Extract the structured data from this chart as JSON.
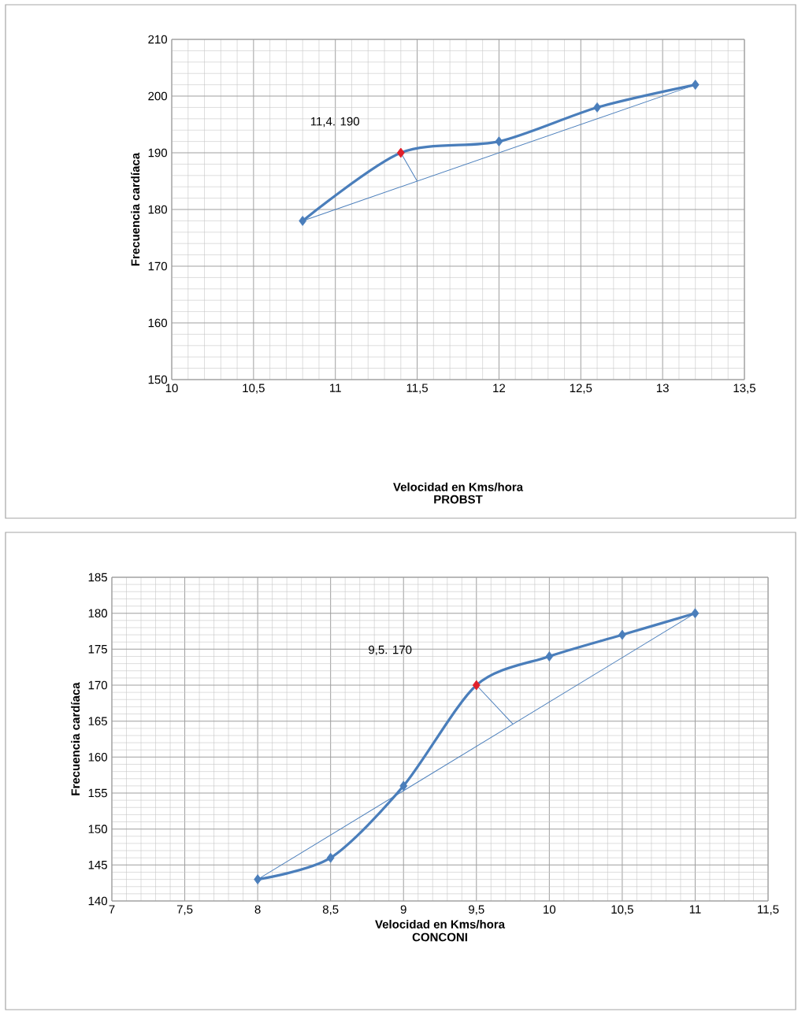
{
  "chart_data": [
    {
      "type": "line",
      "title": "PROBST",
      "xlabel": "Velocidad en Kms/hora",
      "ylabel": "Frecuencia cardíaca",
      "xlim": [
        10,
        13.5
      ],
      "xticks": [
        10,
        {
          "value": 10.5,
          "label": "10,5"
        },
        11,
        {
          "value": 11.5,
          "label": "11,5"
        },
        12,
        {
          "value": 12.5,
          "label": "12,5"
        },
        13,
        {
          "value": 13.5,
          "label": "13,5"
        }
      ],
      "ylim": [
        150,
        210
      ],
      "yticks": [
        150,
        160,
        170,
        180,
        190,
        200,
        210
      ],
      "grid": true,
      "series": [
        {
          "marker": "diamond",
          "color": "#4a7ebb",
          "colors": [
            "#4a7ebb",
            "#e0202a",
            "#4a7ebb",
            "#4a7ebb",
            "#4a7ebb"
          ],
          "x": [
            10.8,
            11.4,
            12,
            12.6,
            13.2
          ],
          "values": [
            178,
            190,
            192,
            198,
            202
          ]
        },
        {
          "marker": "none",
          "color": "#4a7ebb",
          "x": [
            10.8,
            13.2
          ],
          "values": [
            178,
            202
          ]
        },
        {
          "marker": "none",
          "color": "#4a7ebb",
          "x": [
            11.4,
            11.5
          ],
          "values": [
            190,
            185
          ]
        }
      ],
      "annotations": [
        "11,4. 190"
      ]
    },
    {
      "type": "line",
      "title": "CONCONI",
      "xlabel": "Velocidad en Kms/hora",
      "ylabel": "Frecuencia cardíaca",
      "xlim": [
        7,
        11.5
      ],
      "xticks": [
        7,
        {
          "value": 7.5,
          "label": "7,5"
        },
        8,
        {
          "value": 8.5,
          "label": "8,5"
        },
        9,
        {
          "value": 9.5,
          "label": "9,5"
        },
        10,
        {
          "value": 10.5,
          "label": "10,5"
        },
        11,
        {
          "value": 11.5,
          "label": "11,5"
        }
      ],
      "ylim": [
        140,
        185
      ],
      "yticks": [
        140,
        145,
        150,
        155,
        160,
        165,
        170,
        175,
        180,
        185
      ],
      "grid": true,
      "series": [
        {
          "marker": "diamond",
          "color": "#4a7ebb",
          "colors": [
            "#4a7ebb",
            "#4a7ebb",
            "#4a7ebb",
            "#e0202a",
            "#4a7ebb",
            "#4a7ebb",
            "#4a7ebb"
          ],
          "x": [
            8,
            8.5,
            9,
            9.5,
            10,
            10.5,
            11
          ],
          "values": [
            143,
            146,
            156,
            170,
            174,
            177,
            180
          ]
        },
        {
          "marker": "none",
          "color": "#4a7ebb",
          "x": [
            8,
            11
          ],
          "values": [
            143,
            180
          ]
        },
        {
          "marker": "none",
          "color": "#4a7ebb",
          "x": [
            9.5,
            9.75
          ],
          "values": [
            170,
            164.6
          ]
        }
      ],
      "annotations": [
        "9,5. 170"
      ]
    }
  ]
}
